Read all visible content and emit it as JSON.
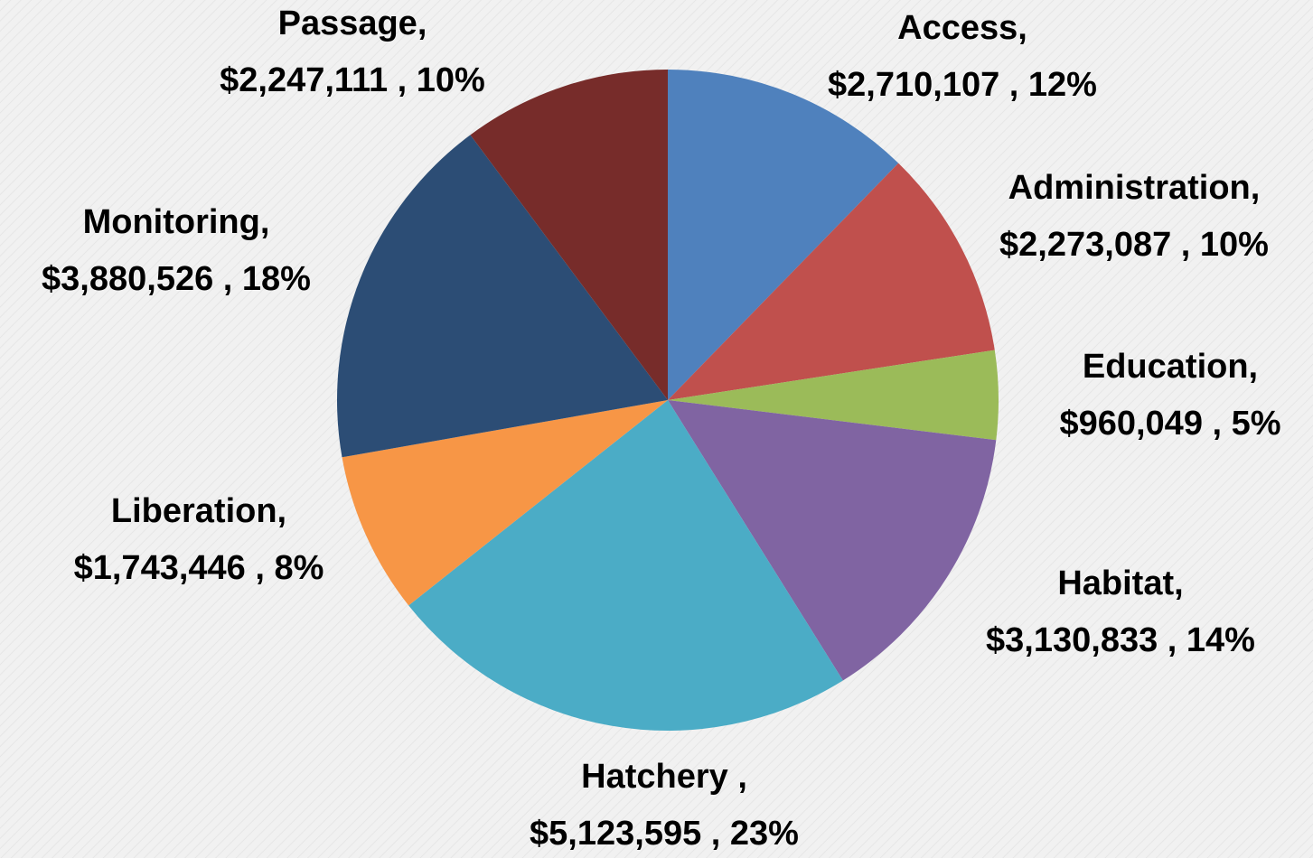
{
  "chart_data": {
    "type": "pie",
    "categories": [
      "Access,",
      "Administration,",
      "Education,",
      "Habitat,",
      "Hatchery ,",
      "Liberation,",
      "Monitoring,",
      "Passage,"
    ],
    "values": [
      2710107,
      2273087,
      960049,
      3130833,
      5123595,
      1743446,
      3880526,
      2247111
    ],
    "value_labels": [
      "$2,710,107 , 12%",
      "$2,273,087 , 10%",
      "$960,049 , 5%",
      "$3,130,833 , 14%",
      "$5,123,595 , 23%",
      "$1,743,446 , 8%",
      "$3,880,526 , 18%",
      "$2,247,111 , 10%"
    ],
    "colors": [
      "#4f81bd",
      "#c0504d",
      "#9bbb59",
      "#8064a2",
      "#4bacc6",
      "#f79646",
      "#2c4d75",
      "#772c2a"
    ]
  }
}
